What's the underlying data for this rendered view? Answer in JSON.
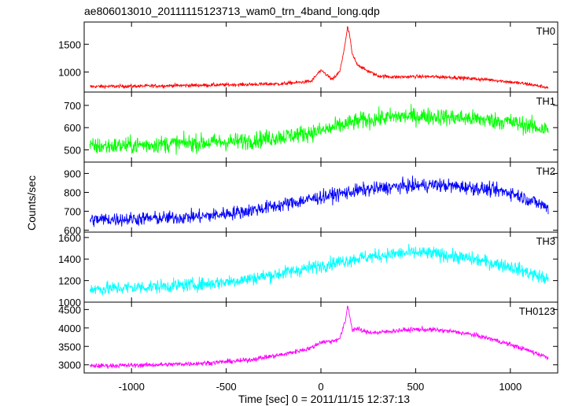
{
  "chart_data": {
    "type": "line",
    "title": "ae806013010_20111115123713_wam0_trn_4band_long.qdp",
    "xlabel": "Time [sec] 0 = 2011/11/15 12:37:13",
    "ylabel": "Counts/sec",
    "xlim": [
      -1250,
      1250
    ],
    "xticks": [
      -1000,
      -500,
      0,
      500,
      1000
    ],
    "legend": "none",
    "grid": false,
    "panels": [
      {
        "name": "TH0",
        "color": "#ff0000",
        "ylim": [
          640,
          1900
        ],
        "yticks": [
          1000,
          1500
        ],
        "x": [
          -1220,
          -1000,
          -800,
          -600,
          -400,
          -200,
          -50,
          -10,
          10,
          60,
          100,
          130,
          140,
          150,
          165,
          190,
          230,
          300,
          400,
          500,
          600,
          700,
          800,
          900,
          1000,
          1100,
          1200
        ],
        "y": [
          740,
          745,
          755,
          765,
          775,
          790,
          835,
          1000,
          1010,
          860,
          1010,
          1550,
          1800,
          1700,
          1320,
          1150,
          1050,
          930,
          910,
          920,
          915,
          905,
          880,
          860,
          820,
          780,
          720
        ],
        "noise": 22
      },
      {
        "name": "TH1",
        "color": "#00ff00",
        "ylim": [
          445,
          760
        ],
        "yticks": [
          500,
          600,
          700
        ],
        "x": [
          -1220,
          -1000,
          -800,
          -600,
          -400,
          -200,
          0,
          200,
          400,
          500,
          600,
          800,
          1000,
          1200
        ],
        "y": [
          515,
          520,
          528,
          532,
          540,
          560,
          585,
          630,
          650,
          652,
          650,
          640,
          625,
          590
        ],
        "noise": 28
      },
      {
        "name": "TH2",
        "color": "#0000ff",
        "ylim": [
          590,
          960
        ],
        "yticks": [
          600,
          700,
          800,
          900
        ],
        "x": [
          -1220,
          -1000,
          -800,
          -600,
          -400,
          -200,
          0,
          200,
          400,
          500,
          600,
          800,
          1000,
          1200
        ],
        "y": [
          655,
          660,
          665,
          675,
          700,
          735,
          775,
          810,
          830,
          835,
          840,
          825,
          800,
          720
        ],
        "noise": 26
      },
      {
        "name": "TH3",
        "color": "#00ffff",
        "ylim": [
          1000,
          1650
        ],
        "yticks": [
          1000,
          1200,
          1400,
          1600
        ],
        "x": [
          -1220,
          -1000,
          -800,
          -600,
          -400,
          -200,
          0,
          200,
          400,
          500,
          600,
          800,
          1000,
          1200
        ],
        "y": [
          1120,
          1135,
          1150,
          1170,
          1210,
          1270,
          1340,
          1410,
          1450,
          1460,
          1450,
          1400,
          1330,
          1210
        ],
        "noise": 45
      },
      {
        "name": "TH0123",
        "color": "#ff00ff",
        "ylim": [
          2780,
          4700
        ],
        "yticks": [
          3000,
          3500,
          4000,
          4500
        ],
        "x": [
          -1220,
          -1000,
          -800,
          -600,
          -400,
          -200,
          -50,
          0,
          60,
          100,
          130,
          140,
          150,
          165,
          190,
          230,
          300,
          400,
          500,
          600,
          700,
          800,
          900,
          1000,
          1100,
          1200
        ],
        "y": [
          2970,
          2985,
          3010,
          3050,
          3120,
          3280,
          3460,
          3620,
          3640,
          3720,
          4200,
          4600,
          4400,
          3950,
          3980,
          3900,
          3870,
          3930,
          3960,
          3950,
          3900,
          3820,
          3700,
          3550,
          3380,
          3200
        ],
        "noise": 45
      }
    ]
  }
}
